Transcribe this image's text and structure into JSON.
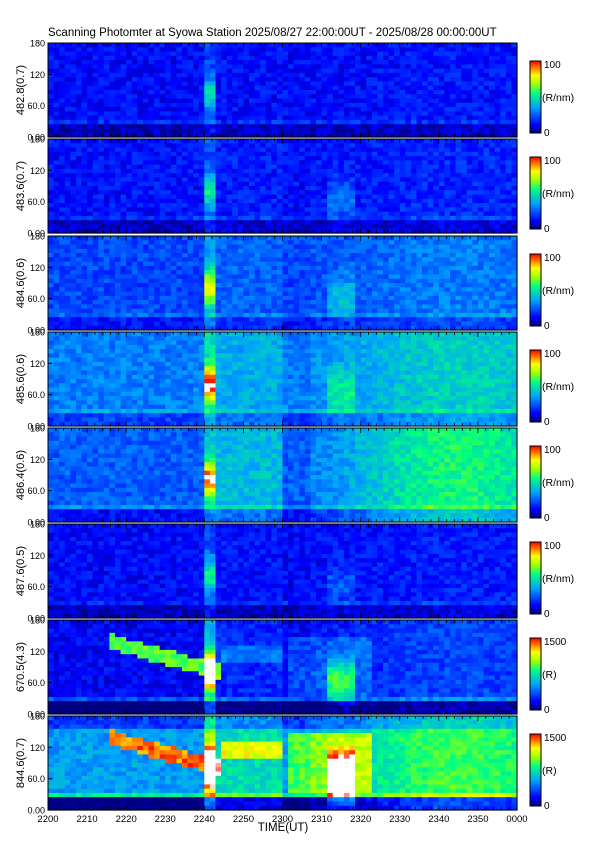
{
  "title": "Scanning Photomter at Syowa Station  2025/08/27 22:00:00UT - 2025/08/28 00:00:00UT",
  "xlabel": "TIME(UT)",
  "colors": {
    "background": "#ffffff",
    "axis": "#000000"
  },
  "chart_data": {
    "type": "heatmap",
    "x_tick_labels": [
      "2200",
      "2210",
      "2220",
      "2230",
      "2240",
      "2250",
      "2300",
      "2310",
      "2320",
      "2330",
      "2340",
      "2350",
      "0000"
    ],
    "y_tick_labels": [
      "0.00",
      "60.0",
      "120",
      "180"
    ],
    "ylim": [
      0,
      180
    ],
    "xlim": [
      "2200",
      "0000"
    ],
    "colormap": [
      "#000080",
      "#0000ff",
      "#00a0ff",
      "#00ff80",
      "#a0ff00",
      "#ffff00",
      "#ff8000",
      "#ff0000",
      "#ffffff"
    ],
    "panels": [
      {
        "ylabel": "482.8(0.7)",
        "cbar_max": "100",
        "cbar_min": "0",
        "unit": "(R/nm)",
        "base": 0.13,
        "bright": 0.02,
        "band": 0.05,
        "spot": 0.25,
        "spot2": 0.0
      },
      {
        "ylabel": "483.6(0.7)",
        "cbar_max": "100",
        "cbar_min": "0",
        "unit": "(R/nm)",
        "base": 0.14,
        "bright": 0.03,
        "band": 0.05,
        "spot": 0.3,
        "spot2": 0.12
      },
      {
        "ylabel": "484.6(0.6)",
        "cbar_max": "100",
        "cbar_min": "0",
        "unit": "(R/nm)",
        "base": 0.22,
        "bright": 0.08,
        "band": 0.05,
        "spot": 0.45,
        "spot2": 0.15
      },
      {
        "ylabel": "485.6(0.6)",
        "cbar_max": "100",
        "cbar_min": "0",
        "unit": "(R/nm)",
        "base": 0.3,
        "bright": 0.15,
        "band": 0.06,
        "spot": 0.55,
        "spot2": 0.18
      },
      {
        "ylabel": "486.4(0.6)",
        "cbar_max": "100",
        "cbar_min": "0",
        "unit": "(R/nm)",
        "base": 0.25,
        "bright": 0.3,
        "band": 0.08,
        "spot": 0.55,
        "spot2": 0.0
      },
      {
        "ylabel": "487.6(0.5)",
        "cbar_max": "100",
        "cbar_min": "0",
        "unit": "(R/nm)",
        "base": 0.13,
        "bright": 0.03,
        "band": 0.05,
        "spot": 0.3,
        "spot2": 0.1
      },
      {
        "ylabel": "670.5(4.3)",
        "cbar_max": "1500",
        "cbar_min": "0",
        "unit": "(R)",
        "base": 0.12,
        "bright": 0.1,
        "band": 0.12,
        "spot": 0.9,
        "spot2": 0.35
      },
      {
        "ylabel": "844.6(0.7)",
        "cbar_max": "1500",
        "cbar_min": "0",
        "unit": "(R)",
        "base": 0.2,
        "bright": 0.25,
        "band": 0.15,
        "spot": 1.0,
        "spot2": 0.85
      }
    ]
  }
}
